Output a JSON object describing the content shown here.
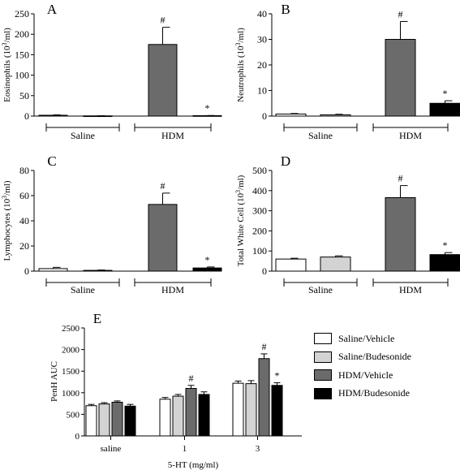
{
  "colors": {
    "saline_vehicle": "#ffffff",
    "saline_budesonide": "#d3d3d3",
    "hdm_vehicle": "#6b6b6b",
    "hdm_budesonide": "#000000"
  },
  "legend": [
    {
      "label": "Saline/Vehicle",
      "color_key": "saline_vehicle"
    },
    {
      "label": "Saline/Budesonide",
      "color_key": "saline_budesonide"
    },
    {
      "label": "HDM/Vehicle",
      "color_key": "hdm_vehicle"
    },
    {
      "label": "HDM/Budesonide",
      "color_key": "hdm_budesonide"
    }
  ],
  "chart_data": [
    {
      "panel": "A",
      "type": "bar",
      "ylabel": "Eosinophils (10³/ml)",
      "ylim": [
        0,
        250
      ],
      "yticks": [
        "0",
        "50",
        "100",
        "150",
        "200",
        "250"
      ],
      "groups": [
        "Saline",
        "HDM"
      ],
      "values": [
        2,
        0.5,
        175,
        1
      ],
      "errors": [
        1,
        0.3,
        42,
        0.5
      ],
      "annotations": [
        "",
        "",
        "#",
        "*"
      ]
    },
    {
      "panel": "B",
      "type": "bar",
      "ylabel": "Neutrophils (10³/ml)",
      "ylim": [
        0,
        40
      ],
      "yticks": [
        "0",
        "10",
        "20",
        "30",
        "40"
      ],
      "groups": [
        "Saline",
        "HDM"
      ],
      "values": [
        0.8,
        0.5,
        30,
        5
      ],
      "errors": [
        0.2,
        0.2,
        7,
        1
      ],
      "annotations": [
        "",
        "",
        "#",
        "*"
      ]
    },
    {
      "panel": "C",
      "type": "bar",
      "ylabel": "Lymphocytes (10³/ml)",
      "ylim": [
        0,
        80
      ],
      "yticks": [
        "0",
        "20",
        "40",
        "60",
        "80"
      ],
      "groups": [
        "Saline",
        "HDM"
      ],
      "values": [
        2,
        0.6,
        53,
        2.5
      ],
      "errors": [
        1,
        0.3,
        9,
        0.8
      ],
      "annotations": [
        "",
        "",
        "#",
        "*"
      ]
    },
    {
      "panel": "D",
      "type": "bar",
      "ylabel": "Total White Cell (10³/ml)",
      "ylim": [
        0,
        500
      ],
      "yticks": [
        "0",
        "100",
        "200",
        "300",
        "400",
        "500"
      ],
      "groups": [
        "Saline",
        "HDM"
      ],
      "values": [
        60,
        70,
        365,
        82
      ],
      "errors": [
        4,
        6,
        60,
        10
      ],
      "annotations": [
        "",
        "",
        "#",
        "*"
      ]
    },
    {
      "panel": "E",
      "type": "bar",
      "ylabel": "PenH AUC",
      "xlabel": "5-HT (mg/ml)",
      "ylim": [
        0,
        2500
      ],
      "yticks": [
        "0",
        "500",
        "1000",
        "1500",
        "2000",
        "2500"
      ],
      "categories": [
        "saline",
        "1",
        "3"
      ],
      "series": [
        {
          "name": "Saline/Vehicle",
          "values": [
            700,
            850,
            1220
          ],
          "errors": [
            30,
            40,
            50
          ]
        },
        {
          "name": "Saline/Budesonide",
          "values": [
            740,
            920,
            1210
          ],
          "errors": [
            30,
            40,
            70
          ]
        },
        {
          "name": "HDM/Vehicle",
          "values": [
            780,
            1100,
            1790
          ],
          "errors": [
            30,
            70,
            110
          ]
        },
        {
          "name": "HDM/Budesonide",
          "values": [
            690,
            960,
            1170
          ],
          "errors": [
            40,
            60,
            60
          ]
        }
      ],
      "annotations": [
        {
          "category": 1,
          "series": 2,
          "text": "#"
        },
        {
          "category": 2,
          "series": 2,
          "text": "#"
        },
        {
          "category": 2,
          "series": 3,
          "text": "*"
        }
      ]
    }
  ]
}
